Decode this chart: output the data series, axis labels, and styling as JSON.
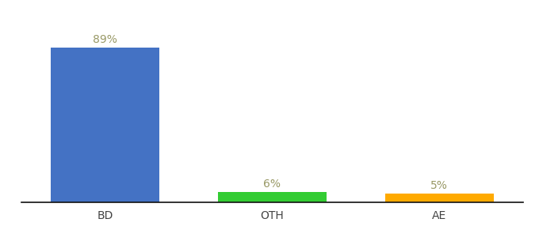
{
  "categories": [
    "BD",
    "OTH",
    "AE"
  ],
  "values": [
    89,
    6,
    5
  ],
  "bar_colors": [
    "#4472c4",
    "#33cc33",
    "#ffaa00"
  ],
  "labels": [
    "89%",
    "6%",
    "5%"
  ],
  "background_color": "#ffffff",
  "label_color": "#999966",
  "xlabel_color": "#444444",
  "ylim": [
    0,
    100
  ],
  "bar_width": 0.65,
  "label_fontsize": 10,
  "tick_fontsize": 10,
  "xlim": [
    -0.5,
    2.5
  ]
}
